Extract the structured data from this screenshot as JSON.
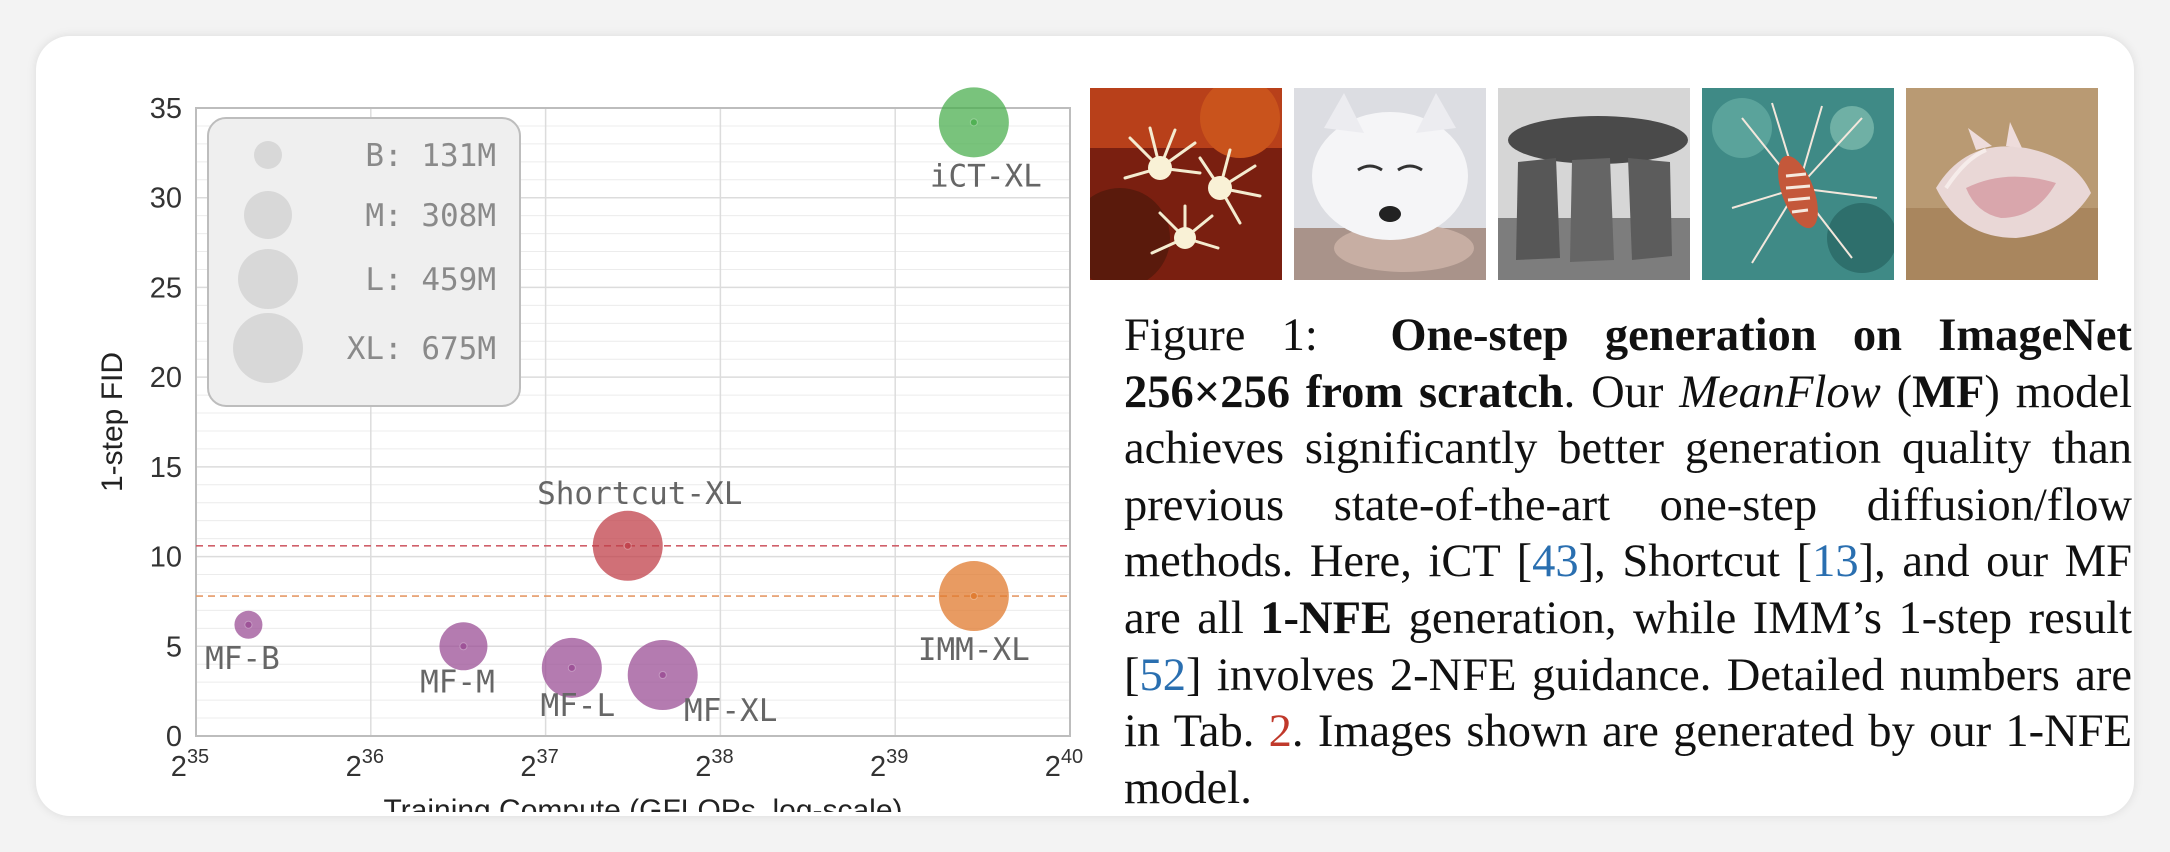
{
  "chart_data": {
    "type": "scatter",
    "xlabel": "Training Compute (GFLOPs, log-scale)",
    "ylabel": "1-step FID",
    "x_scale": "log2",
    "xlim_exp": [
      35,
      40
    ],
    "ylim": [
      0,
      35
    ],
    "yticks": [
      0,
      5,
      10,
      15,
      20,
      25,
      30,
      35
    ],
    "xticks": [
      {
        "base": "2",
        "exp": "35",
        "v": 35
      },
      {
        "base": "2",
        "exp": "36",
        "v": 36
      },
      {
        "base": "2",
        "exp": "37",
        "v": 37
      },
      {
        "base": "2",
        "exp": "38",
        "v": 38
      },
      {
        "base": "2",
        "exp": "39",
        "v": 39
      },
      {
        "base": "2",
        "exp": "40",
        "v": 40
      }
    ],
    "grid": true,
    "points": [
      {
        "name": "MF-B",
        "x_exp": 35.3,
        "y": 6.2,
        "size": "B",
        "color": "#9b4f96"
      },
      {
        "name": "MF-M",
        "x_exp": 36.53,
        "y": 5.0,
        "size": "M",
        "color": "#9b4f96"
      },
      {
        "name": "MF-L",
        "x_exp": 37.15,
        "y": 3.8,
        "size": "L",
        "color": "#9b4f96"
      },
      {
        "name": "MF-XL",
        "x_exp": 37.67,
        "y": 3.4,
        "size": "XL",
        "color": "#9b4f96"
      },
      {
        "name": "Shortcut-XL",
        "x_exp": 37.47,
        "y": 10.6,
        "size": "XL",
        "color": "#c0404a"
      },
      {
        "name": "IMM-XL",
        "x_exp": 39.45,
        "y": 7.8,
        "size": "XL",
        "color": "#e07a2e"
      },
      {
        "name": "iCT-XL",
        "x_exp": 39.45,
        "y": 34.2,
        "size": "XL",
        "color": "#4caf50"
      }
    ],
    "hlines": [
      {
        "y": 10.6,
        "color": "#d0606a"
      },
      {
        "y": 7.8,
        "color": "#e59a68"
      }
    ],
    "legend": {
      "placement": "top-left",
      "entries": [
        {
          "label": "B: 131M",
          "size": "B"
        },
        {
          "label": "M: 308M",
          "size": "M"
        },
        {
          "label": "L: 459M",
          "size": "L"
        },
        {
          "label": "XL: 675M",
          "size": "XL"
        }
      ]
    }
  },
  "caption": {
    "figure_label": "Figure 1:",
    "title_bold": "One-step generation on ImageNet 256×256 from scratch",
    "p1": ". Our ",
    "meanflow_italic": "MeanFlow",
    "p2": " (",
    "mf_bold": "MF",
    "p3": ") model achieves significantly better generation quality than previous state-of-the-art one-step diffusion/flow methods. Here, iCT [",
    "cite1": "43",
    "p4": "], Shortcut [",
    "cite2": "13",
    "p5": "], and our MF are all ",
    "nfe_bold": "1-NFE",
    "p6": " generation, while IMM’s 1-step result [",
    "cite3": "52",
    "p7": "] involves 2-NFE guidance. Detailed numbers are in Tab. ",
    "tab_ref": "2",
    "p8": ". Images shown are generated by our 1-NFE model."
  },
  "images": [
    {
      "subject": "sea-anemone"
    },
    {
      "subject": "arctic-fox"
    },
    {
      "subject": "stone-dolmen"
    },
    {
      "subject": "lionfish"
    },
    {
      "subject": "seashell"
    }
  ]
}
